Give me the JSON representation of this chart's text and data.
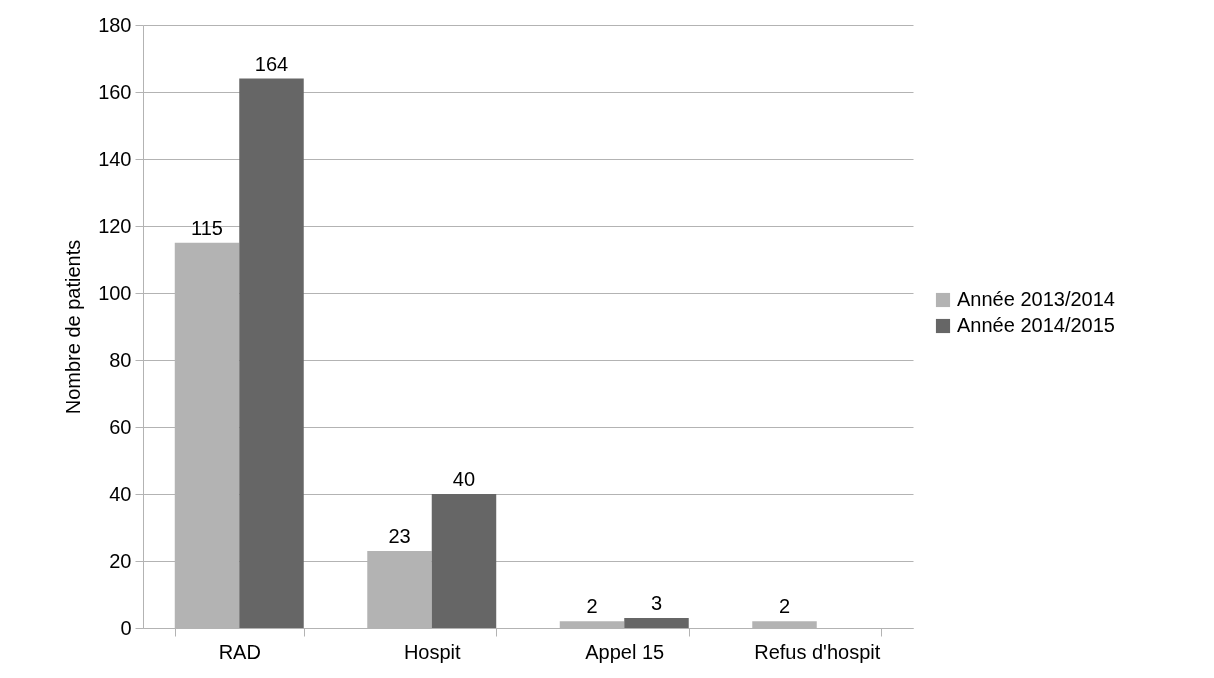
{
  "chart_data": {
    "type": "bar",
    "ylabel": "Nombre de patients",
    "categories": [
      "RAD",
      "Hospit",
      "Appel 15",
      "Refus d'hospit"
    ],
    "series": [
      {
        "name": "Année 2013/2014",
        "color": "#b3b3b3",
        "values": [
          115,
          23,
          2,
          2
        ]
      },
      {
        "name": "Année 2014/2015",
        "color": "#666666",
        "values": [
          164,
          40,
          3,
          null
        ]
      }
    ],
    "ylim": [
      0,
      180
    ],
    "yticks": [
      0,
      20,
      40,
      60,
      80,
      100,
      120,
      140,
      160,
      180
    ],
    "grid": "y",
    "legend": "right",
    "data_labels": true
  }
}
